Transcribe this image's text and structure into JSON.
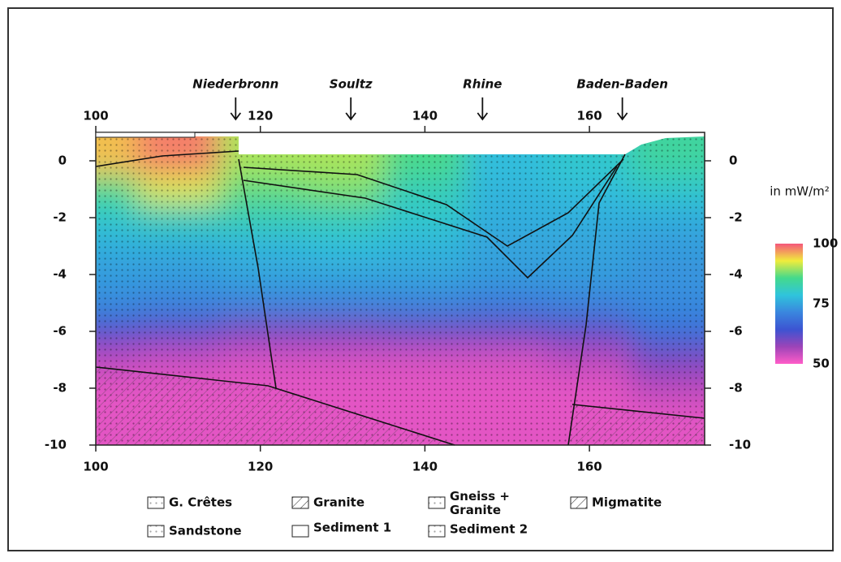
{
  "chart_data": {
    "type": "heatmap",
    "xlim": [
      100,
      174
    ],
    "ylim": [
      -10,
      1
    ],
    "xticks": [
      100,
      120,
      140,
      160
    ],
    "yticks": [
      0,
      -2,
      -4,
      -6,
      -8,
      -10
    ],
    "x_grid": [
      100,
      110,
      120,
      130,
      140,
      150,
      160,
      170
    ],
    "y_grid": [
      0,
      -1,
      -2,
      -3,
      -4,
      -5,
      -6,
      -7,
      -8,
      -9,
      -10
    ],
    "z": [
      [
        95,
        98,
        90,
        90,
        86,
        78,
        80,
        84
      ],
      [
        86,
        92,
        87,
        88,
        82,
        77,
        78,
        80
      ],
      [
        80,
        82,
        82,
        82,
        80,
        76,
        76,
        76
      ],
      [
        76,
        76,
        77,
        78,
        77,
        75,
        75,
        74
      ],
      [
        74,
        74,
        75,
        75,
        75,
        74,
        74,
        73
      ],
      [
        72,
        71,
        71,
        71,
        71,
        70,
        71,
        72
      ],
      [
        63,
        62,
        60,
        60,
        61,
        61,
        62,
        68
      ],
      [
        55,
        54,
        53,
        53,
        53,
        53,
        55,
        60
      ],
      [
        52,
        52,
        52,
        52,
        52,
        52,
        52,
        55
      ],
      [
        52,
        52,
        52,
        52,
        52,
        52,
        52,
        52
      ],
      [
        52,
        52,
        52,
        52,
        52,
        52,
        52,
        52
      ]
    ],
    "colorscale": [
      "#ff5cc8",
      "#9c44b8",
      "#3c54d2",
      "#3a86de",
      "#2fc4dc",
      "#44d98c",
      "#f0ec3c",
      "#f5567a"
    ],
    "zlim": [
      50,
      100
    ],
    "zticks": [
      100,
      75,
      50
    ],
    "colorbar_label": "in mW/m²",
    "locations": [
      {
        "name": "Niederbronn",
        "x": 117
      },
      {
        "name": "Soultz",
        "x": 131
      },
      {
        "name": "Rhine",
        "x": 147
      },
      {
        "name": "Baden-Baden",
        "x": 164
      }
    ],
    "legend": [
      "G. Crêtes",
      "Granite",
      "Gneiss + Granite",
      "Migmatite",
      "Sandstone",
      "Sediment 1",
      "Sediment 2"
    ]
  }
}
